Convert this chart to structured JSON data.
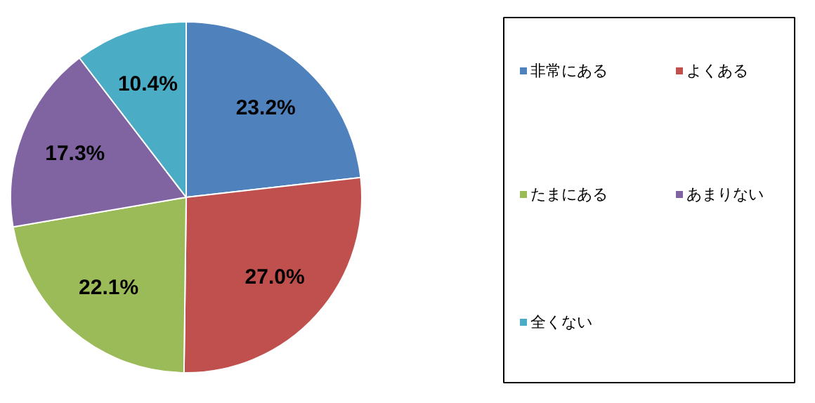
{
  "chart_data": {
    "type": "pie",
    "categories": [
      "非常にある",
      "よくある",
      "たまにある",
      "あまりない",
      "全くない"
    ],
    "values": [
      23.2,
      27.0,
      22.1,
      17.3,
      10.4
    ],
    "colors": [
      "#4f81bd",
      "#c0504d",
      "#9bbb59",
      "#8064a2",
      "#4bacc6"
    ],
    "value_labels": [
      "23.2%",
      "27.0%",
      "22.1%",
      "17.3%",
      "10.4%"
    ],
    "legend": "right"
  }
}
